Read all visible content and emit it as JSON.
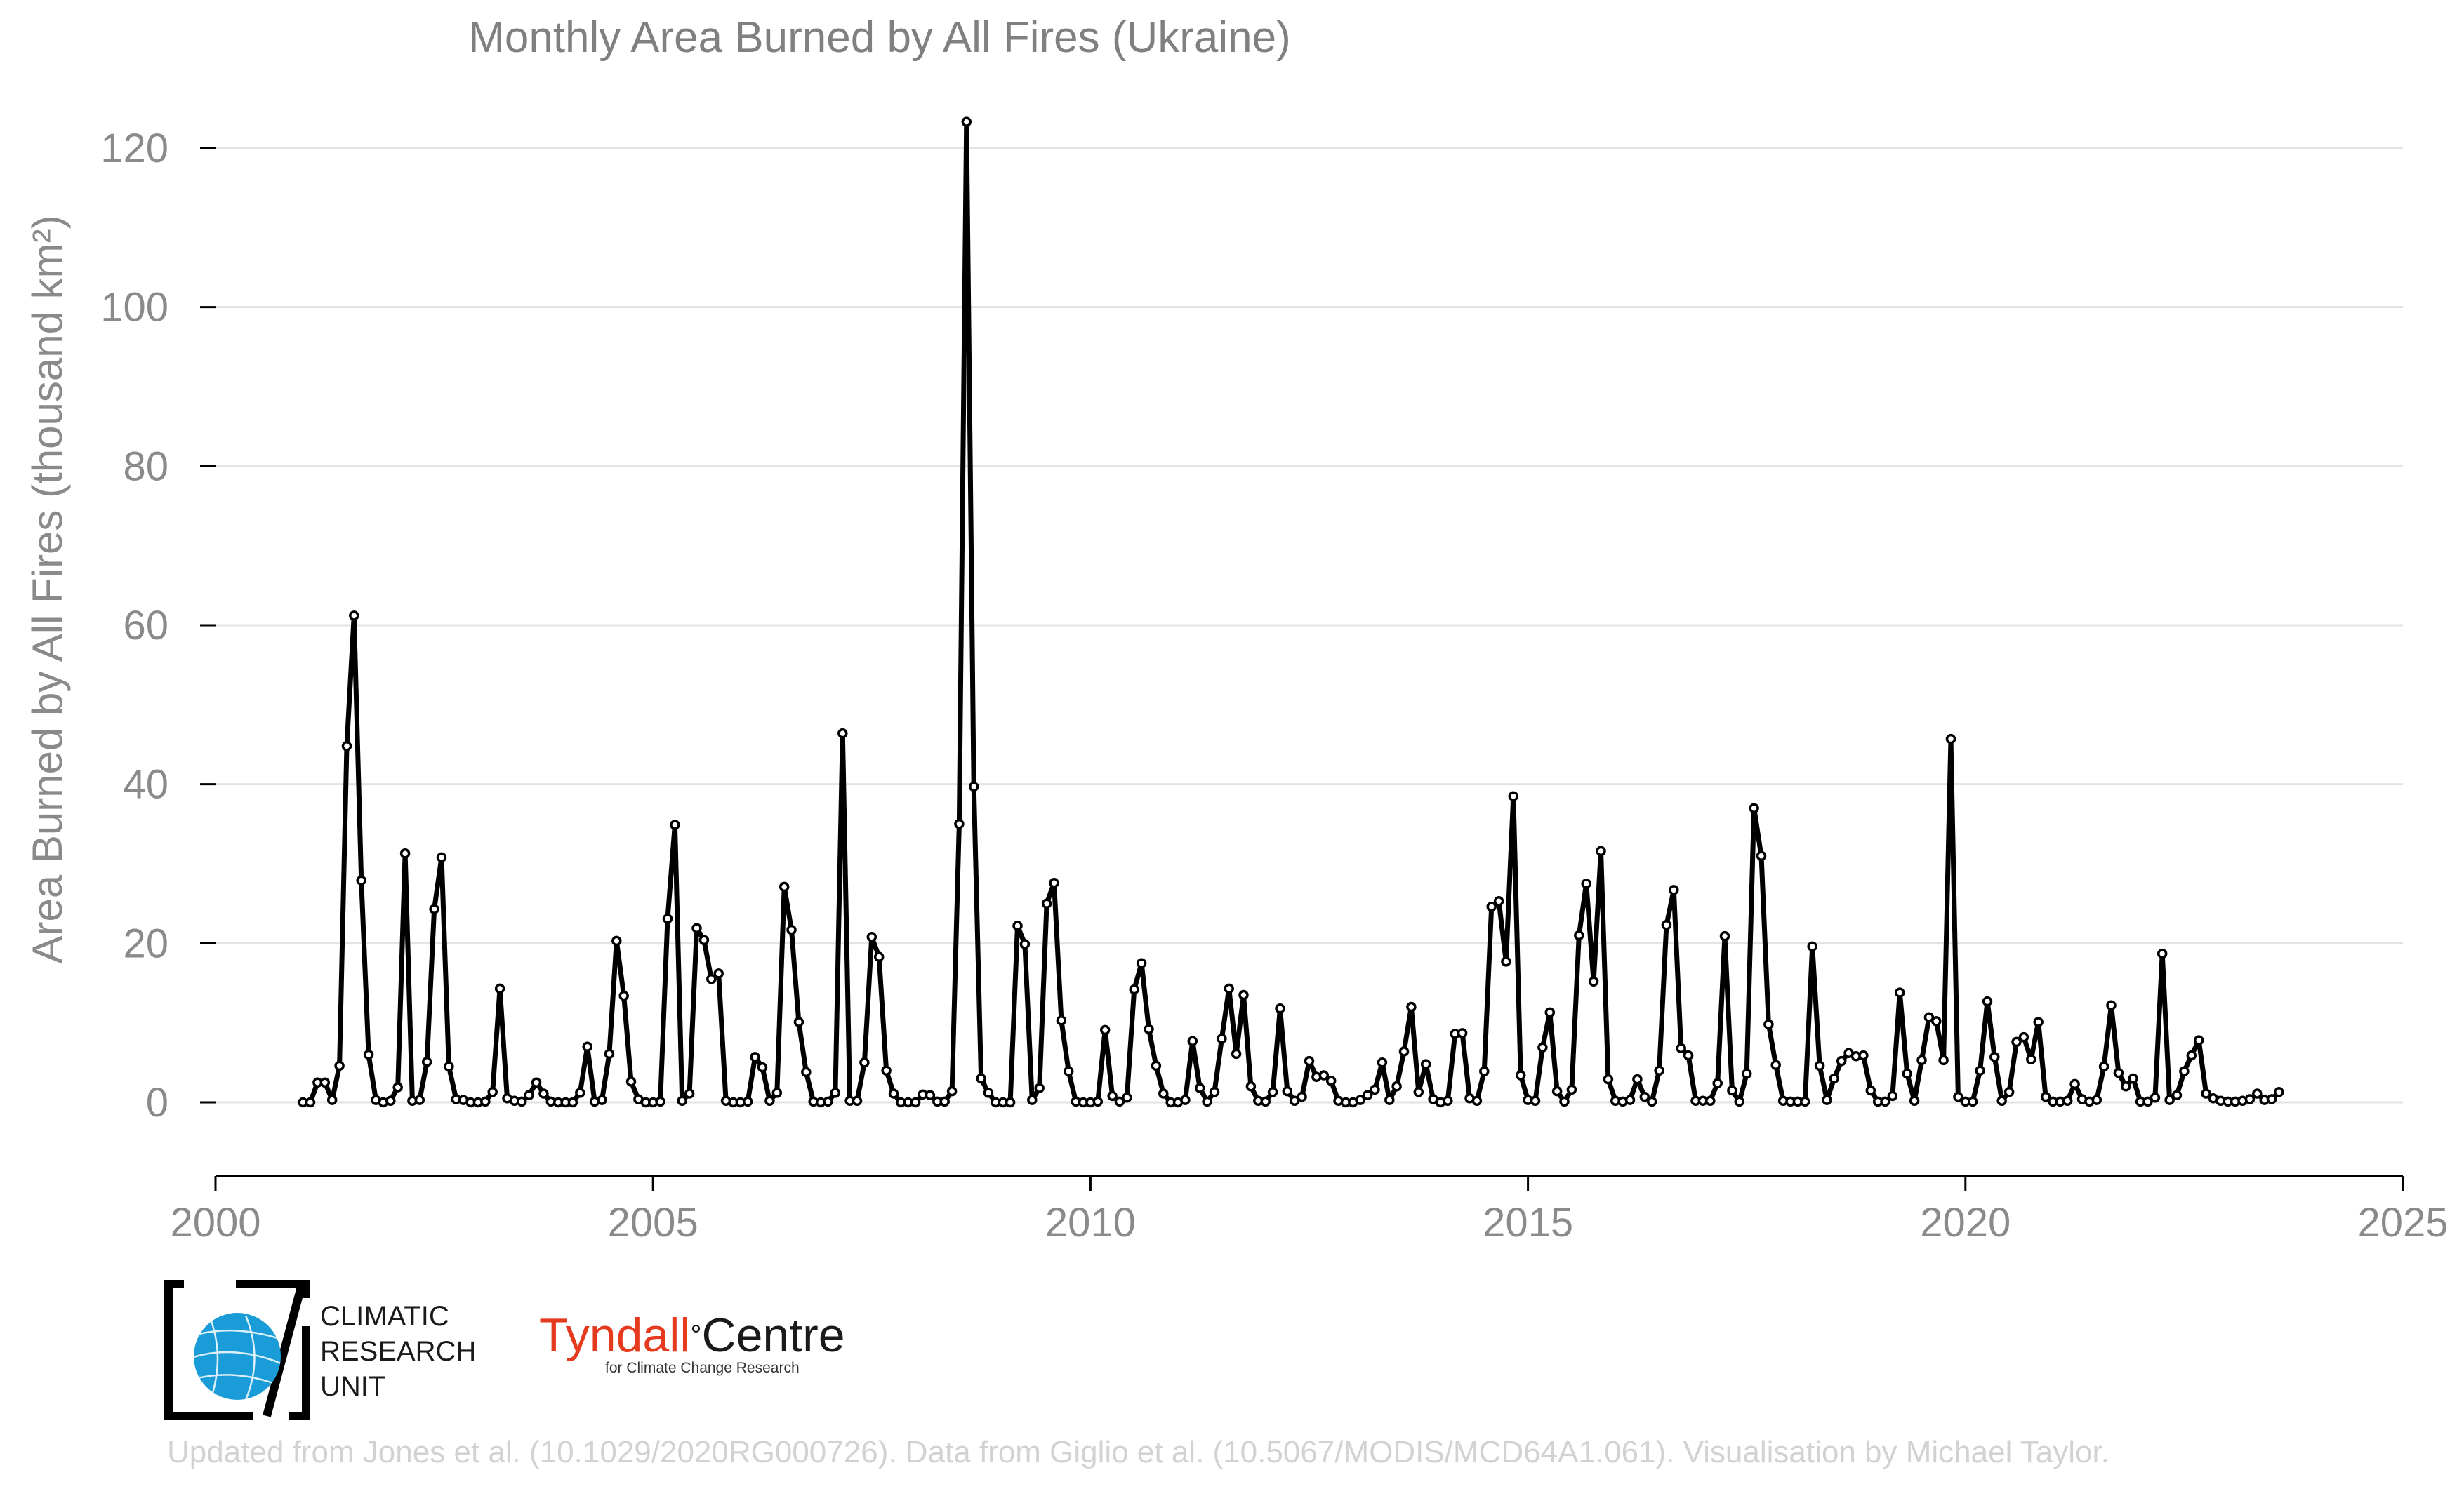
{
  "chart_data": {
    "type": "line",
    "title": "Monthly Area Burned by All Fires (Ukraine)",
    "ylabel": "Area Burned by All Fires (thousand km²)",
    "xlabel": "",
    "xlim": [
      2000,
      2025
    ],
    "ylim": [
      -10,
      125
    ],
    "xticks": [
      2000,
      2005,
      2010,
      2015,
      2020,
      2025
    ],
    "yticks": [
      0,
      20,
      40,
      60,
      80,
      100,
      120
    ],
    "grid": "horizontal",
    "series": [
      {
        "color": "#000000",
        "start": "2001-01",
        "values": [
          0.0,
          0.0,
          2.5,
          2.5,
          0.3,
          4.6,
          44.8,
          61.2,
          27.9,
          6.0,
          0.3,
          0.0,
          0.2,
          1.9,
          31.3,
          0.2,
          0.3,
          5.1,
          24.3,
          30.8,
          4.5,
          0.4,
          0.3,
          0.0,
          0.0,
          0.1,
          1.3,
          14.3,
          0.5,
          0.2,
          0.1,
          0.9,
          2.5,
          1.1,
          0.1,
          0.0,
          0.0,
          0.0,
          1.2,
          7.0,
          0.1,
          0.3,
          6.1,
          20.3,
          13.4,
          2.6,
          0.4,
          0.0,
          0.0,
          0.1,
          23.1,
          34.9,
          0.2,
          1.1,
          21.9,
          20.4,
          15.5,
          16.2,
          0.2,
          0.0,
          0.0,
          0.1,
          5.7,
          4.4,
          0.2,
          1.2,
          27.1,
          21.7,
          10.1,
          3.8,
          0.1,
          0.0,
          0.1,
          1.2,
          46.4,
          0.2,
          0.2,
          5.0,
          20.8,
          18.3,
          4.0,
          1.1,
          0.0,
          0.0,
          0.0,
          1.0,
          0.9,
          0.1,
          0.1,
          1.4,
          35.0,
          123.3,
          39.7,
          3.0,
          1.2,
          0.0,
          0.0,
          0.0,
          22.2,
          19.9,
          0.3,
          1.8,
          25.0,
          27.6,
          10.3,
          3.9,
          0.1,
          0.0,
          0.0,
          0.1,
          9.1,
          0.8,
          0.1,
          0.6,
          14.2,
          17.5,
          9.2,
          4.6,
          1.1,
          0.0,
          0.0,
          0.3,
          7.7,
          1.8,
          0.1,
          1.3,
          8.0,
          14.3,
          6.1,
          13.5,
          2.0,
          0.2,
          0.1,
          1.3,
          11.8,
          1.4,
          0.2,
          0.7,
          5.2,
          3.2,
          3.4,
          2.7,
          0.2,
          0.0,
          0.0,
          0.3,
          0.9,
          1.6,
          5.0,
          0.3,
          2.0,
          6.4,
          12.0,
          1.3,
          4.8,
          0.4,
          0.0,
          0.2,
          8.6,
          8.7,
          0.5,
          0.2,
          3.9,
          24.6,
          25.3,
          17.7,
          38.5,
          3.4,
          0.3,
          0.2,
          6.9,
          11.3,
          1.4,
          0.1,
          1.6,
          21.0,
          27.5,
          15.2,
          31.6,
          2.9,
          0.2,
          0.1,
          0.3,
          2.9,
          0.7,
          0.1,
          4.0,
          22.3,
          26.7,
          6.8,
          5.9,
          0.2,
          0.2,
          0.2,
          2.4,
          20.9,
          1.5,
          0.1,
          3.6,
          37.0,
          31.0,
          9.8,
          4.7,
          0.2,
          0.1,
          0.1,
          0.1,
          19.6,
          4.6,
          0.3,
          3.0,
          5.2,
          6.2,
          5.8,
          5.9,
          1.5,
          0.1,
          0.1,
          0.8,
          13.8,
          3.6,
          0.2,
          5.3,
          10.7,
          10.2,
          5.3,
          45.7,
          0.7,
          0.1,
          0.1,
          4.0,
          12.7,
          5.7,
          0.2,
          1.3,
          7.6,
          8.2,
          5.4,
          10.1,
          0.7,
          0.1,
          0.1,
          0.2,
          2.3,
          0.4,
          0.1,
          0.3,
          4.5,
          12.2,
          3.7,
          2.0,
          3.0,
          0.1,
          0.1,
          0.6,
          18.7,
          0.3,
          0.9,
          3.9,
          5.9,
          7.8,
          1.1,
          0.5,
          0.2,
          0.1,
          0.1,
          0.2,
          0.4,
          1.1,
          0.3,
          0.4,
          1.3
        ]
      }
    ]
  },
  "logos": {
    "cru_line1": "CLIMATIC",
    "cru_line2": "RESEARCH",
    "cru_line3": "UNIT",
    "tyndall_name": "Tyndall",
    "tyndall_degree": "°",
    "tyndall_centre": "Centre",
    "tyndall_sub": "for Climate Change Research",
    "tyndall_color": "#e63a1e",
    "cru_color": "#1a9cd8"
  },
  "footer": {
    "credit": "Updated from Jones et al. (10.1029/2020RG000726). Data from Giglio et al. (10.5067/MODIS/MCD64A1.061). Visualisation by Michael Taylor."
  }
}
